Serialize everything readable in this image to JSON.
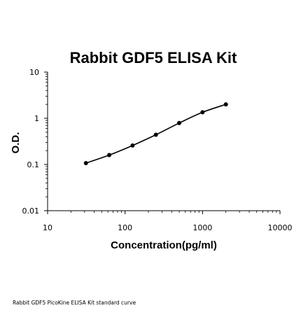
{
  "chart_data": {
    "type": "line",
    "title": "Rabbit GDF5 ELISA Kit",
    "xlabel": "Concentration(pg/ml)",
    "ylabel": "O.D.",
    "xscale": "log",
    "yscale": "log",
    "xlim": [
      10,
      10000
    ],
    "ylim": [
      0.01,
      10
    ],
    "x_ticks": [
      "10",
      "100",
      "1000",
      "10000"
    ],
    "y_ticks": [
      "0.01",
      "0.1",
      "1",
      "10"
    ],
    "grid": false,
    "series": [
      {
        "x": [
          31.25,
          62.5,
          125,
          250,
          500,
          1000,
          2000
        ],
        "y": [
          0.107,
          0.16,
          0.258,
          0.44,
          0.79,
          1.35,
          2.0
        ]
      }
    ],
    "colors": {
      "line": "#000000",
      "marker": "#000000"
    }
  },
  "caption": "Rabbit GDF5 PicoKine ELISA Kit standard curve"
}
